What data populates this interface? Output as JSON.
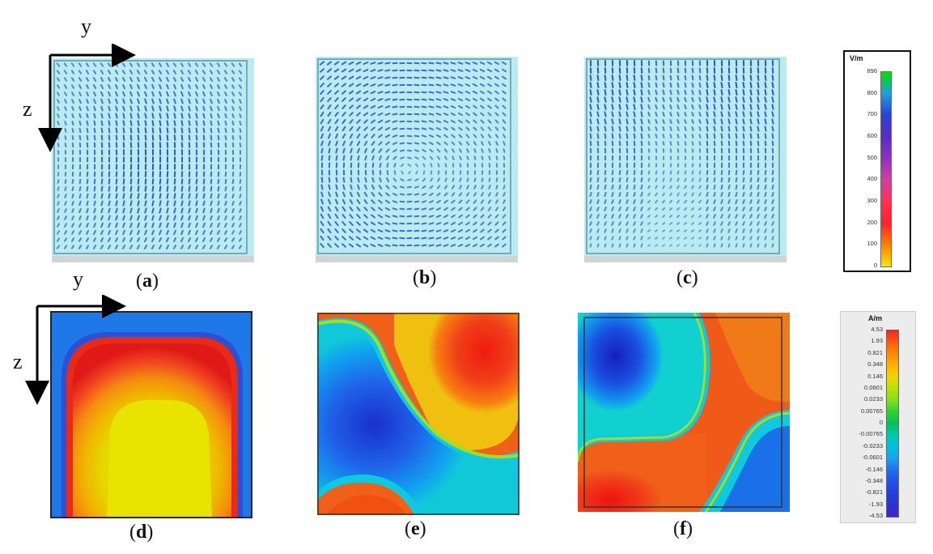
{
  "captions": [
    {
      "open": "(",
      "letter": "a",
      "close": ")"
    },
    {
      "open": "(",
      "letter": "b",
      "close": ")"
    },
    {
      "open": "(",
      "letter": "c",
      "close": ")"
    },
    {
      "open": "(",
      "letter": "d",
      "close": ")"
    },
    {
      "open": "(",
      "letter": "e",
      "close": ")"
    },
    {
      "open": "(",
      "letter": "f",
      "close": ")"
    }
  ],
  "axes": {
    "top": {
      "horizontal": "y",
      "vertical": "z"
    },
    "bottom": {
      "horizontal": "y",
      "vertical": "z"
    }
  },
  "efield_colorbar": {
    "unit": "V/m",
    "ticks": [
      "896",
      "800",
      "700",
      "600",
      "500",
      "400",
      "300",
      "200",
      "100",
      "0"
    ],
    "colors": [
      "#00e000",
      "#1e9fe0",
      "#2a40d8",
      "#5a2cc8",
      "#9030c0",
      "#d040a0",
      "#ff3050",
      "#ff2030",
      "#ff8000",
      "#f4e800"
    ]
  },
  "hfield_colorbar": {
    "unit": "A/m",
    "ticks": [
      "4.53",
      "1.93",
      "0.821",
      "0.348",
      "0.146",
      "0.0601",
      "0.0233",
      "0.00765",
      "0",
      "-0.00765",
      "-0.0233",
      "-0.0601",
      "-0.146",
      "-0.348",
      "-0.821",
      "-1.93",
      "-4.53"
    ],
    "colors": [
      "#ff2020",
      "#ff5a10",
      "#ff8a00",
      "#ffb000",
      "#e8d800",
      "#b8e000",
      "#80e020",
      "#30d030",
      "#00c060",
      "#00c8b0",
      "#00c0e0",
      "#1aa0f0",
      "#2070f0",
      "#2050e8",
      "#2040e0",
      "#3030d0",
      "#3a28c8"
    ]
  },
  "palette": {
    "vector_bg": "#b8ecf0",
    "vector_arrow": "#2a4bd0",
    "field_blue": "#1a6ce8",
    "field_red": "#f02a10",
    "field_yellow": "#e8e400"
  }
}
